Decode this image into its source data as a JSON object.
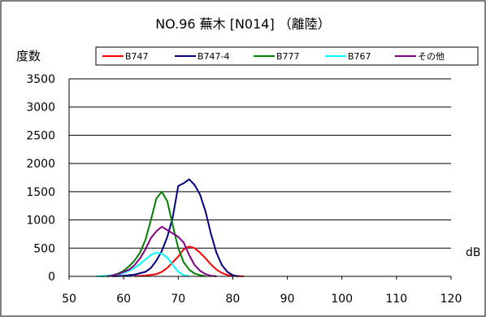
{
  "chart_data": {
    "type": "line",
    "title": "NO.96 蕪木 [N014] （離陸）",
    "ylabel": "度数",
    "xlabel": "dB",
    "xlim": [
      50,
      120
    ],
    "ylim": [
      0,
      3500
    ],
    "x_ticks": [
      50,
      60,
      70,
      80,
      90,
      100,
      110,
      120
    ],
    "y_ticks": [
      0,
      500,
      1000,
      1500,
      2000,
      2500,
      3000,
      3500
    ],
    "grid": "horizontal",
    "legend_position": "top",
    "series": [
      {
        "name": "B747",
        "color": "#ff0000",
        "points": [
          [
            62,
            5
          ],
          [
            64,
            15
          ],
          [
            66,
            40
          ],
          [
            67,
            80
          ],
          [
            68,
            150
          ],
          [
            69,
            250
          ],
          [
            70,
            350
          ],
          [
            71,
            480
          ],
          [
            72,
            530
          ],
          [
            73,
            500
          ],
          [
            74,
            420
          ],
          [
            75,
            320
          ],
          [
            76,
            210
          ],
          [
            77,
            120
          ],
          [
            78,
            60
          ],
          [
            79,
            25
          ],
          [
            80,
            8
          ],
          [
            82,
            0
          ]
        ]
      },
      {
        "name": "B747-4",
        "color": "#000080",
        "points": [
          [
            58,
            0
          ],
          [
            60,
            10
          ],
          [
            62,
            30
          ],
          [
            64,
            80
          ],
          [
            65,
            150
          ],
          [
            66,
            280
          ],
          [
            67,
            450
          ],
          [
            68,
            700
          ],
          [
            69,
            1050
          ],
          [
            70,
            1600
          ],
          [
            71,
            1650
          ],
          [
            72,
            1720
          ],
          [
            73,
            1620
          ],
          [
            74,
            1450
          ],
          [
            75,
            1150
          ],
          [
            76,
            750
          ],
          [
            77,
            420
          ],
          [
            78,
            200
          ],
          [
            79,
            80
          ],
          [
            80,
            20
          ],
          [
            81,
            0
          ]
        ]
      },
      {
        "name": "B777",
        "color": "#008000",
        "points": [
          [
            56,
            0
          ],
          [
            58,
            20
          ],
          [
            59,
            50
          ],
          [
            60,
            100
          ],
          [
            61,
            180
          ],
          [
            62,
            280
          ],
          [
            63,
            420
          ],
          [
            64,
            650
          ],
          [
            65,
            1000
          ],
          [
            66,
            1380
          ],
          [
            67,
            1500
          ],
          [
            68,
            1330
          ],
          [
            69,
            900
          ],
          [
            70,
            500
          ],
          [
            71,
            250
          ],
          [
            72,
            120
          ],
          [
            73,
            50
          ],
          [
            74,
            20
          ],
          [
            75,
            5
          ]
        ]
      },
      {
        "name": "B767",
        "color": "#00ffff",
        "points": [
          [
            55,
            0
          ],
          [
            57,
            10
          ],
          [
            59,
            30
          ],
          [
            60,
            60
          ],
          [
            61,
            100
          ],
          [
            62,
            150
          ],
          [
            63,
            220
          ],
          [
            64,
            300
          ],
          [
            65,
            380
          ],
          [
            66,
            420
          ],
          [
            67,
            400
          ],
          [
            68,
            330
          ],
          [
            69,
            200
          ],
          [
            70,
            80
          ],
          [
            71,
            20
          ],
          [
            72,
            0
          ]
        ]
      },
      {
        "name": "その他",
        "color": "#800080",
        "points": [
          [
            57,
            0
          ],
          [
            58,
            15
          ],
          [
            59,
            40
          ],
          [
            60,
            80
          ],
          [
            61,
            120
          ],
          [
            62,
            200
          ],
          [
            63,
            320
          ],
          [
            64,
            480
          ],
          [
            65,
            680
          ],
          [
            66,
            800
          ],
          [
            67,
            880
          ],
          [
            68,
            820
          ],
          [
            69,
            760
          ],
          [
            70,
            700
          ],
          [
            71,
            600
          ],
          [
            72,
            380
          ],
          [
            73,
            200
          ],
          [
            74,
            100
          ],
          [
            75,
            40
          ],
          [
            76,
            10
          ],
          [
            77,
            0
          ]
        ]
      }
    ]
  }
}
